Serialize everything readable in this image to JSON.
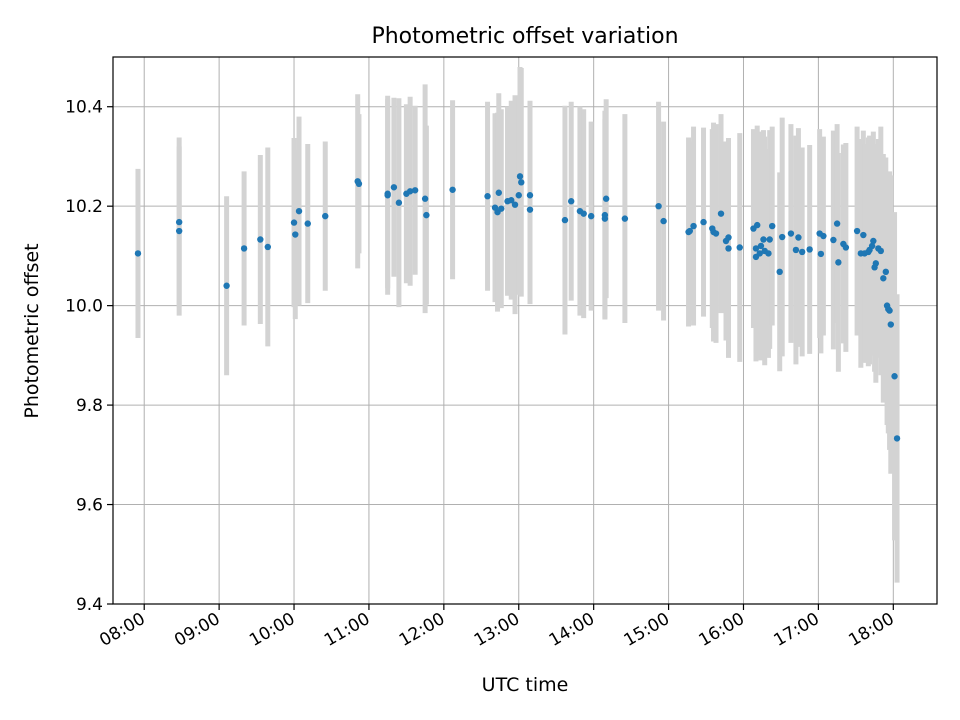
{
  "chart_data": {
    "type": "scatter",
    "title": "Photometric offset variation",
    "xlabel": "UTC time",
    "ylabel": "Photometric offset",
    "x_tick_labels": [
      "08:00",
      "09:00",
      "10:00",
      "11:00",
      "12:00",
      "13:00",
      "14:00",
      "15:00",
      "16:00",
      "17:00",
      "18:00"
    ],
    "y_tick_labels": [
      "9.4",
      "9.6",
      "9.8",
      "10.0",
      "10.2",
      "10.4"
    ],
    "xlim": [
      "07:35",
      "18:35"
    ],
    "ylim": [
      9.4,
      10.5
    ],
    "grid": true,
    "colors": {
      "point": "#1f77b4",
      "errorbar": "#d3d3d3",
      "grid": "#b0b0b0"
    },
    "series": [
      {
        "x": [
          "07:55",
          "08:28",
          "08:28",
          "09:06",
          "09:20",
          "09:33",
          "09:39",
          "10:00",
          "10:01",
          "10:04",
          "10:11",
          "10:25",
          "10:51",
          "10:52",
          "11:15",
          "11:15",
          "11:20",
          "11:24",
          "11:30",
          "11:33",
          "11:37",
          "11:45",
          "11:46",
          "12:07",
          "12:35",
          "12:41",
          "12:43",
          "12:44",
          "12:46",
          "12:51",
          "12:54",
          "12:57",
          "13:00",
          "13:01",
          "13:02",
          "13:09",
          "13:09",
          "13:37",
          "13:42",
          "13:49",
          "13:52",
          "13:58",
          "14:09",
          "14:09",
          "14:10",
          "14:25",
          "14:52",
          "14:56",
          "15:16",
          "15:17",
          "15:20",
          "15:28",
          "15:35",
          "15:36",
          "15:38",
          "15:42",
          "15:46",
          "15:48",
          "15:48",
          "15:57",
          "16:08",
          "16:10",
          "16:10",
          "16:11",
          "16:13",
          "16:14",
          "16:16",
          "16:17",
          "16:20",
          "16:21",
          "16:23",
          "16:29",
          "16:31",
          "16:38",
          "16:42",
          "16:44",
          "16:47",
          "16:53",
          "17:01",
          "17:02",
          "17:04",
          "17:12",
          "17:15",
          "17:16",
          "17:20",
          "17:22",
          "17:31",
          "17:34",
          "17:36",
          "17:37",
          "17:40",
          "17:41",
          "17:43",
          "17:44",
          "17:45",
          "17:46",
          "17:48",
          "17:50",
          "17:52",
          "17:54",
          "17:55",
          "17:56",
          "17:57",
          "17:58",
          "18:01",
          "18:03"
        ],
        "y": [
          10.105,
          10.15,
          10.168,
          10.04,
          10.115,
          10.133,
          10.118,
          10.167,
          10.143,
          10.19,
          10.165,
          10.18,
          10.25,
          10.245,
          10.222,
          10.225,
          10.238,
          10.207,
          10.225,
          10.23,
          10.232,
          10.215,
          10.182,
          10.233,
          10.22,
          10.197,
          10.188,
          10.227,
          10.195,
          10.21,
          10.212,
          10.203,
          10.222,
          10.26,
          10.248,
          10.193,
          10.222,
          10.172,
          10.21,
          10.19,
          10.185,
          10.18,
          10.182,
          10.175,
          10.215,
          10.175,
          10.2,
          10.17,
          10.148,
          10.15,
          10.16,
          10.168,
          10.155,
          10.148,
          10.145,
          10.185,
          10.13,
          10.115,
          10.137,
          10.117,
          10.155,
          10.115,
          10.098,
          10.162,
          10.105,
          10.12,
          10.133,
          10.11,
          10.105,
          10.133,
          10.16,
          10.068,
          10.138,
          10.145,
          10.112,
          10.137,
          10.108,
          10.113,
          10.145,
          10.104,
          10.14,
          10.132,
          10.165,
          10.087,
          10.124,
          10.117,
          10.15,
          10.105,
          10.142,
          10.105,
          10.108,
          10.112,
          10.12,
          10.13,
          10.077,
          10.085,
          10.115,
          10.11,
          10.055,
          10.068,
          10.0,
          9.993,
          9.99,
          9.962,
          9.858,
          9.733
        ],
        "yerr": [
          0.17,
          0.17,
          0.17,
          0.18,
          0.155,
          0.17,
          0.2,
          0.17,
          0.17,
          0.19,
          0.16,
          0.15,
          0.175,
          0.14,
          0.2,
          0.19,
          0.18,
          0.21,
          0.18,
          0.19,
          0.17,
          0.23,
          0.18,
          0.18,
          0.19,
          0.19,
          0.2,
          0.2,
          0.2,
          0.19,
          0.2,
          0.22,
          0.2,
          0.22,
          0.23,
          0.19,
          0.19,
          0.23,
          0.2,
          0.21,
          0.21,
          0.19,
          0.21,
          0.2,
          0.2,
          0.21,
          0.21,
          0.2,
          0.19,
          0.18,
          0.2,
          0.19,
          0.2,
          0.22,
          0.22,
          0.2,
          0.2,
          0.22,
          0.2,
          0.23,
          0.2,
          0.21,
          0.21,
          0.2,
          0.21,
          0.23,
          0.22,
          0.23,
          0.21,
          0.22,
          0.2,
          0.2,
          0.24,
          0.22,
          0.23,
          0.22,
          0.21,
          0.21,
          0.21,
          0.2,
          0.2,
          0.22,
          0.2,
          0.22,
          0.2,
          0.21,
          0.21,
          0.23,
          0.21,
          0.22,
          0.23,
          0.23,
          0.22,
          0.22,
          0.21,
          0.24,
          0.22,
          0.25,
          0.25,
          0.23,
          0.24,
          0.25,
          0.28,
          0.3,
          0.33,
          0.29
        ]
      }
    ]
  }
}
